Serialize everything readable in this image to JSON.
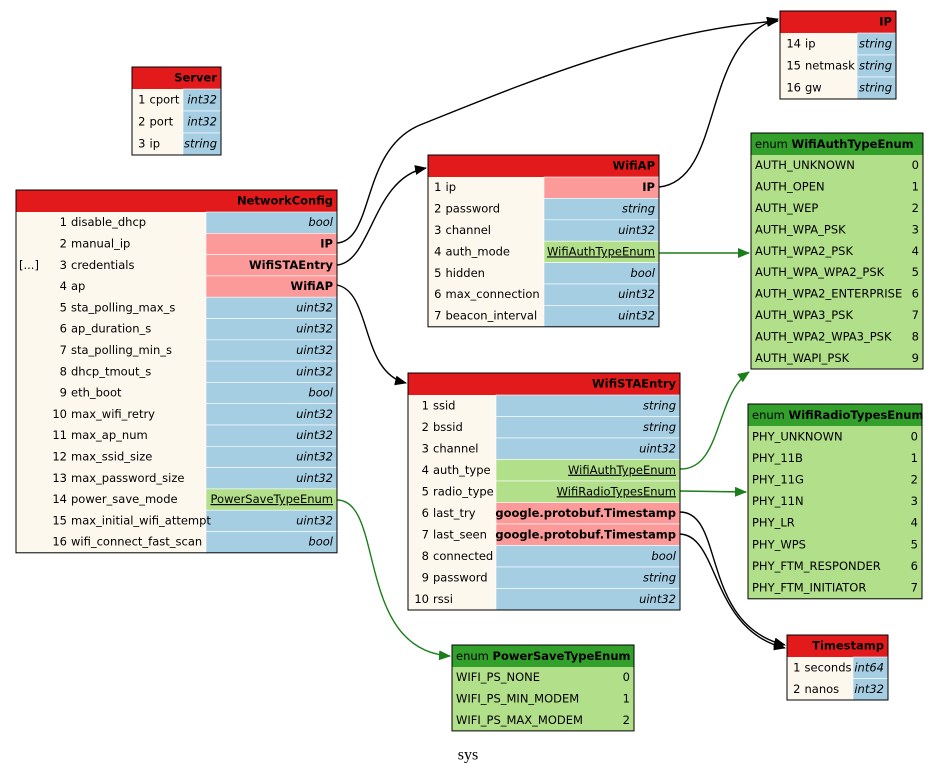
{
  "messages": [
    {
      "title": "Server",
      "fields": [
        {
          "num": 1,
          "name": "cport",
          "type": "int32"
        },
        {
          "num": 2,
          "name": "port",
          "type": "int32"
        },
        {
          "num": 3,
          "name": "ip",
          "type": "string"
        }
      ]
    },
    {
      "title": "NetworkConfig",
      "fields": [
        {
          "num": 1,
          "name": "disable_dhcp",
          "type": "bool"
        },
        {
          "num": 2,
          "name": "manual_ip",
          "type": "IP"
        },
        {
          "prefix": "[...]",
          "num": 3,
          "name": "credentials",
          "type": "WifiSTAEntry"
        },
        {
          "num": 4,
          "name": "ap",
          "type": "WifiAP"
        },
        {
          "num": 5,
          "name": "sta_polling_max_s",
          "type": "uint32"
        },
        {
          "num": 6,
          "name": "ap_duration_s",
          "type": "uint32"
        },
        {
          "num": 7,
          "name": "sta_polling_min_s",
          "type": "uint32"
        },
        {
          "num": 8,
          "name": "dhcp_tmout_s",
          "type": "uint32"
        },
        {
          "num": 9,
          "name": "eth_boot",
          "type": "bool"
        },
        {
          "num": 10,
          "name": "max_wifi_retry",
          "type": "uint32"
        },
        {
          "num": 11,
          "name": "max_ap_num",
          "type": "uint32"
        },
        {
          "num": 12,
          "name": "max_ssid_size",
          "type": "uint32"
        },
        {
          "num": 13,
          "name": "max_password_size",
          "type": "uint32"
        },
        {
          "num": 14,
          "name": "power_save_mode",
          "type": "PowerSaveTypeEnum"
        },
        {
          "num": 15,
          "name": "max_initial_wifi_attempt",
          "type": "uint32"
        },
        {
          "num": 16,
          "name": "wifi_connect_fast_scan",
          "type": "bool"
        }
      ]
    },
    {
      "title": "WifiAP",
      "fields": [
        {
          "num": 1,
          "name": "ip",
          "type": "IP"
        },
        {
          "num": 2,
          "name": "password",
          "type": "string"
        },
        {
          "num": 3,
          "name": "channel",
          "type": "uint32"
        },
        {
          "num": 4,
          "name": "auth_mode",
          "type": "WifiAuthTypeEnum"
        },
        {
          "num": 5,
          "name": "hidden",
          "type": "bool"
        },
        {
          "num": 6,
          "name": "max_connection",
          "type": "uint32"
        },
        {
          "num": 7,
          "name": "beacon_interval",
          "type": "uint32"
        }
      ]
    },
    {
      "title": "IP",
      "fields": [
        {
          "num": 14,
          "name": "ip",
          "type": "string"
        },
        {
          "num": 15,
          "name": "netmask",
          "type": "string"
        },
        {
          "num": 16,
          "name": "gw",
          "type": "string"
        }
      ]
    },
    {
      "title": "WifiSTAEntry",
      "fields": [
        {
          "num": 1,
          "name": "ssid",
          "type": "string"
        },
        {
          "num": 2,
          "name": "bssid",
          "type": "string"
        },
        {
          "num": 3,
          "name": "channel",
          "type": "uint32"
        },
        {
          "num": 4,
          "name": "auth_type",
          "type": "WifiAuthTypeEnum"
        },
        {
          "num": 5,
          "name": "radio_type",
          "type": "WifiRadioTypesEnum"
        },
        {
          "num": 6,
          "name": "last_try",
          "type": "google.protobuf.Timestamp"
        },
        {
          "num": 7,
          "name": "last_seen",
          "type": "google.protobuf.Timestamp"
        },
        {
          "num": 8,
          "name": "connected",
          "type": "bool"
        },
        {
          "num": 9,
          "name": "password",
          "type": "string"
        },
        {
          "num": 10,
          "name": "rssi",
          "type": "uint32"
        }
      ]
    },
    {
      "title": "Timestamp",
      "fields": [
        {
          "num": 1,
          "name": "seconds",
          "type": "int64"
        },
        {
          "num": 2,
          "name": "nanos",
          "type": "int32"
        }
      ]
    }
  ],
  "enums": [
    {
      "kind": "enum",
      "title": "WifiAuthTypeEnum",
      "entries": [
        {
          "name": "AUTH_UNKNOWN",
          "value": 0
        },
        {
          "name": "AUTH_OPEN",
          "value": 1
        },
        {
          "name": "AUTH_WEP",
          "value": 2
        },
        {
          "name": "AUTH_WPA_PSK",
          "value": 3
        },
        {
          "name": "AUTH_WPA2_PSK",
          "value": 4
        },
        {
          "name": "AUTH_WPA_WPA2_PSK",
          "value": 5
        },
        {
          "name": "AUTH_WPA2_ENTERPRISE",
          "value": 6
        },
        {
          "name": "AUTH_WPA3_PSK",
          "value": 7
        },
        {
          "name": "AUTH_WPA2_WPA3_PSK",
          "value": 8
        },
        {
          "name": "AUTH_WAPI_PSK",
          "value": 9
        }
      ]
    },
    {
      "kind": "enum",
      "title": "WifiRadioTypesEnum",
      "entries": [
        {
          "name": "PHY_UNKNOWN",
          "value": 0
        },
        {
          "name": "PHY_11B",
          "value": 1
        },
        {
          "name": "PHY_11G",
          "value": 2
        },
        {
          "name": "PHY_11N",
          "value": 3
        },
        {
          "name": "PHY_LR",
          "value": 4
        },
        {
          "name": "PHY_WPS",
          "value": 5
        },
        {
          "name": "PHY_FTM_RESPONDER",
          "value": 6
        },
        {
          "name": "PHY_FTM_INITIATOR",
          "value": 7
        }
      ]
    },
    {
      "kind": "enum",
      "title": "PowerSaveTypeEnum",
      "entries": [
        {
          "name": "WIFI_PS_NONE",
          "value": 0
        },
        {
          "name": "WIFI_PS_MIN_MODEM",
          "value": 1
        },
        {
          "name": "WIFI_PS_MAX_MODEM",
          "value": 2
        }
      ]
    }
  ],
  "footer": "sys"
}
